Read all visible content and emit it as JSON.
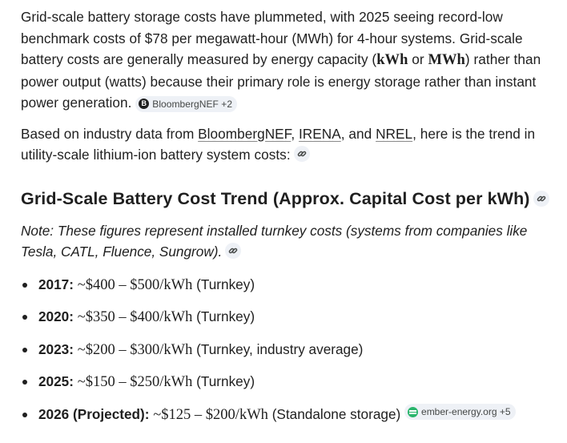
{
  "intro": {
    "t1": "Grid-scale battery storage costs have plummeted, with 2025 seeing record-low benchmark costs of $78 per megawatt-hour (MWh) for 4-hour systems. Grid-scale battery costs are generally measured by energy capacity (",
    "m1": "kWh",
    "t2": " or ",
    "m2": "MWh",
    "t3": ") rather than power output (watts) because their primary role is energy storage rather than instant power generation.",
    "chip": "BloombergNEF +2",
    "chip_logo": "B"
  },
  "sources": {
    "t1": "Based on industry data from ",
    "l1": "BloombergNEF",
    "t2": ", ",
    "l2": "IRENA",
    "t3": ", and ",
    "l3": "NREL",
    "t4": ", here is the trend in utility-scale lithium-ion battery system costs:"
  },
  "heading": "Grid-Scale Battery Cost Trend (Approx. Capital Cost per kWh)",
  "note": "Note: These figures represent installed turnkey costs (systems from companies like Tesla, CATL, Fluence, Sungrow).",
  "items": [
    {
      "year": "2017:",
      "range": "~$400 – $500/kWh",
      "detail": "(Turnkey)"
    },
    {
      "year": "2020:",
      "range": "~$350 – $400/kWh",
      "detail": "(Turnkey)"
    },
    {
      "year": "2023:",
      "range": "~$200 – $300/kWh",
      "detail": "(Turnkey, industry average)"
    },
    {
      "year": "2025:",
      "range": "~$150 – $250/kWh",
      "detail": "(Turnkey)"
    },
    {
      "year": "2026 (Projected):",
      "range": "~$125 – $200/kWh",
      "detail": "(Standalone storage)",
      "chip": "ember-energy.org +5"
    }
  ],
  "icons": {
    "link": "link-icon",
    "source_logo": "bloomberg-logo-icon",
    "ember_logo": "ember-logo-icon"
  }
}
